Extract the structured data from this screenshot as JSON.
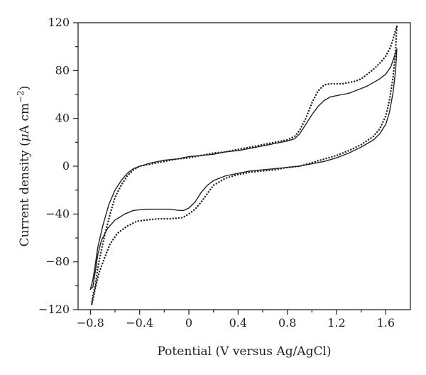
{
  "chart_data": {
    "type": "line",
    "title": "",
    "xlabel": "Potential (V versus Ag/AgCl)",
    "ylabel_prefix": "Current density (",
    "ylabel_mu": "μ",
    "ylabel_unit": "A cm",
    "ylabel_exp": "−2",
    "ylabel_suffix": ")",
    "xlim": [
      -0.9,
      1.8
    ],
    "ylim": [
      -120,
      120
    ],
    "grid": false,
    "legend": "none",
    "x_ticks": [
      -0.8,
      -0.4,
      0,
      0.4,
      0.8,
      1.2,
      1.6
    ],
    "x_tick_labels": [
      "−0.8",
      "−0.4",
      "0",
      "0.4",
      "0.8",
      "1.2",
      "1.6"
    ],
    "y_ticks": [
      -120,
      -80,
      -40,
      0,
      40,
      80,
      120
    ],
    "y_tick_labels": [
      "−120",
      "−80",
      "−40",
      "0",
      "40",
      "80",
      "120"
    ],
    "series": [
      {
        "style": "solid",
        "color": "#222222",
        "points": [
          [
            1.69,
            98
          ],
          [
            1.67,
            92
          ],
          [
            1.64,
            83
          ],
          [
            1.6,
            77
          ],
          [
            1.55,
            73
          ],
          [
            1.5,
            70
          ],
          [
            1.45,
            67
          ],
          [
            1.4,
            65
          ],
          [
            1.35,
            63
          ],
          [
            1.3,
            61
          ],
          [
            1.25,
            60
          ],
          [
            1.2,
            59
          ],
          [
            1.15,
            58
          ],
          [
            1.1,
            55
          ],
          [
            1.05,
            50
          ],
          [
            1.0,
            43
          ],
          [
            0.95,
            35
          ],
          [
            0.9,
            27
          ],
          [
            0.86,
            23
          ],
          [
            0.8,
            21
          ],
          [
            0.7,
            19
          ],
          [
            0.6,
            17
          ],
          [
            0.5,
            15
          ],
          [
            0.4,
            13
          ],
          [
            0.3,
            12
          ],
          [
            0.2,
            10
          ],
          [
            0.1,
            9
          ],
          [
            0.0,
            8
          ],
          [
            -0.1,
            6
          ],
          [
            -0.2,
            5
          ],
          [
            -0.3,
            3
          ],
          [
            -0.4,
            0
          ],
          [
            -0.45,
            -2
          ],
          [
            -0.5,
            -6
          ],
          [
            -0.55,
            -12
          ],
          [
            -0.6,
            -20
          ],
          [
            -0.65,
            -32
          ],
          [
            -0.7,
            -50
          ],
          [
            -0.74,
            -68
          ],
          [
            -0.76,
            -82
          ],
          [
            -0.78,
            -95
          ],
          [
            -0.8,
            -103
          ],
          [
            -0.78,
            -101
          ],
          [
            -0.76,
            -88
          ],
          [
            -0.74,
            -74
          ],
          [
            -0.71,
            -62
          ],
          [
            -0.66,
            -52
          ],
          [
            -0.6,
            -45
          ],
          [
            -0.52,
            -40
          ],
          [
            -0.45,
            -37
          ],
          [
            -0.35,
            -36
          ],
          [
            -0.25,
            -36
          ],
          [
            -0.15,
            -36
          ],
          [
            -0.08,
            -37
          ],
          [
            -0.04,
            -37
          ],
          [
            0.0,
            -35
          ],
          [
            0.05,
            -30
          ],
          [
            0.1,
            -22
          ],
          [
            0.15,
            -16
          ],
          [
            0.2,
            -12
          ],
          [
            0.3,
            -8
          ],
          [
            0.4,
            -6
          ],
          [
            0.5,
            -4
          ],
          [
            0.6,
            -3
          ],
          [
            0.7,
            -2
          ],
          [
            0.8,
            -1
          ],
          [
            0.9,
            0
          ],
          [
            1.0,
            2
          ],
          [
            1.1,
            4
          ],
          [
            1.2,
            7
          ],
          [
            1.3,
            11
          ],
          [
            1.4,
            16
          ],
          [
            1.5,
            22
          ],
          [
            1.55,
            27
          ],
          [
            1.6,
            35
          ],
          [
            1.63,
            45
          ],
          [
            1.66,
            62
          ],
          [
            1.68,
            80
          ],
          [
            1.69,
            98
          ]
        ]
      },
      {
        "style": "dotted",
        "color": "#222222",
        "points": [
          [
            1.69,
            117
          ],
          [
            1.67,
            110
          ],
          [
            1.64,
            100
          ],
          [
            1.6,
            92
          ],
          [
            1.55,
            86
          ],
          [
            1.5,
            81
          ],
          [
            1.45,
            77
          ],
          [
            1.4,
            73
          ],
          [
            1.35,
            71
          ],
          [
            1.3,
            70
          ],
          [
            1.25,
            69
          ],
          [
            1.2,
            69
          ],
          [
            1.15,
            69
          ],
          [
            1.1,
            68
          ],
          [
            1.05,
            63
          ],
          [
            1.0,
            53
          ],
          [
            0.95,
            40
          ],
          [
            0.9,
            30
          ],
          [
            0.86,
            25
          ],
          [
            0.8,
            22
          ],
          [
            0.7,
            20
          ],
          [
            0.6,
            18
          ],
          [
            0.5,
            16
          ],
          [
            0.4,
            14
          ],
          [
            0.3,
            12
          ],
          [
            0.2,
            11
          ],
          [
            0.1,
            9
          ],
          [
            0.0,
            7
          ],
          [
            -0.1,
            6
          ],
          [
            -0.2,
            4
          ],
          [
            -0.3,
            2
          ],
          [
            -0.4,
            0
          ],
          [
            -0.45,
            -3
          ],
          [
            -0.5,
            -8
          ],
          [
            -0.55,
            -16
          ],
          [
            -0.6,
            -26
          ],
          [
            -0.64,
            -40
          ],
          [
            -0.68,
            -56
          ],
          [
            -0.71,
            -70
          ],
          [
            -0.74,
            -85
          ],
          [
            -0.76,
            -100
          ],
          [
            -0.78,
            -108
          ],
          [
            -0.79,
            -116
          ],
          [
            -0.78,
            -112
          ],
          [
            -0.76,
            -102
          ],
          [
            -0.73,
            -89
          ],
          [
            -0.69,
            -78
          ],
          [
            -0.64,
            -65
          ],
          [
            -0.58,
            -56
          ],
          [
            -0.5,
            -50
          ],
          [
            -0.42,
            -46
          ],
          [
            -0.35,
            -45
          ],
          [
            -0.25,
            -44
          ],
          [
            -0.15,
            -44
          ],
          [
            -0.05,
            -43
          ],
          [
            0.0,
            -40
          ],
          [
            0.05,
            -36
          ],
          [
            0.1,
            -30
          ],
          [
            0.15,
            -23
          ],
          [
            0.2,
            -16
          ],
          [
            0.3,
            -10
          ],
          [
            0.4,
            -7
          ],
          [
            0.5,
            -5
          ],
          [
            0.6,
            -4
          ],
          [
            0.7,
            -3
          ],
          [
            0.8,
            -1
          ],
          [
            0.9,
            0
          ],
          [
            1.0,
            3
          ],
          [
            1.1,
            6
          ],
          [
            1.2,
            9
          ],
          [
            1.3,
            13
          ],
          [
            1.4,
            18
          ],
          [
            1.5,
            25
          ],
          [
            1.55,
            31
          ],
          [
            1.6,
            42
          ],
          [
            1.63,
            55
          ],
          [
            1.66,
            75
          ],
          [
            1.68,
            98
          ],
          [
            1.69,
            117
          ]
        ]
      }
    ]
  }
}
